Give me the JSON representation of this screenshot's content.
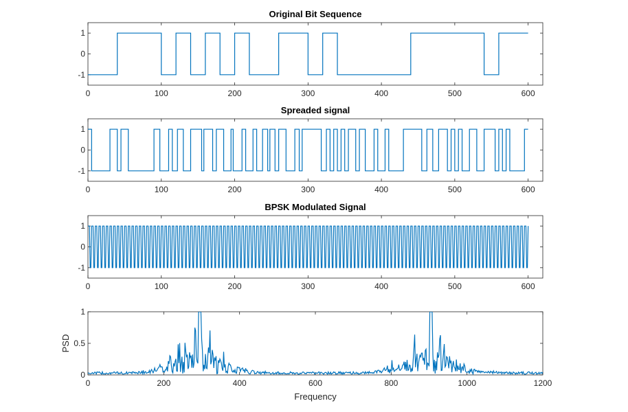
{
  "chart_data": [
    {
      "type": "line",
      "title": "Original Bit Sequence",
      "xlabel": "",
      "ylabel": "",
      "xlim": [
        0,
        620
      ],
      "ylim": [
        -1.5,
        1.5
      ],
      "xticks": [
        0,
        100,
        200,
        300,
        400,
        500,
        600
      ],
      "yticks": [
        -1,
        0,
        1
      ],
      "xtick_labels": [
        "0",
        "100",
        "200",
        "300",
        "400",
        "500",
        "600"
      ],
      "ytick_labels": [
        "-1",
        "0",
        "1"
      ],
      "step_width": 20,
      "values": [
        -1,
        -1,
        1,
        1,
        1,
        -1,
        1,
        -1,
        1,
        -1,
        1,
        -1,
        -1,
        1,
        1,
        -1,
        1,
        -1,
        -1,
        -1,
        -1,
        -1,
        1,
        1,
        1,
        1,
        1,
        -1,
        1,
        1
      ],
      "color": "#0072BD"
    },
    {
      "type": "line",
      "title": "Spreaded signal",
      "xlabel": "",
      "ylabel": "",
      "xlim": [
        0,
        620
      ],
      "ylim": [
        -1.5,
        1.5
      ],
      "xticks": [
        0,
        100,
        200,
        300,
        400,
        500,
        600
      ],
      "yticks": [
        -1,
        0,
        1
      ],
      "xtick_labels": [
        "0",
        "100",
        "200",
        "300",
        "400",
        "500",
        "600"
      ],
      "ytick_labels": [
        "-1",
        "0",
        "1"
      ],
      "breakpoints": [
        0,
        5,
        30,
        40,
        45,
        55,
        90,
        98,
        110,
        115,
        122,
        130,
        140,
        155,
        158,
        170,
        175,
        185,
        195,
        198,
        210,
        215,
        225,
        230,
        238,
        245,
        248,
        255,
        260,
        270,
        282,
        288,
        292,
        300,
        310,
        318,
        325,
        330,
        335,
        340,
        345,
        350,
        355,
        365,
        370,
        378,
        390,
        395,
        405,
        410,
        430,
        455,
        462,
        470,
        478,
        490,
        495,
        500,
        505,
        510,
        520,
        530,
        540,
        555,
        560,
        565,
        570,
        575,
        595,
        600
      ],
      "values": [
        1,
        -1,
        1,
        -1,
        1,
        -1,
        1,
        -1,
        1,
        -1,
        1,
        -1,
        1,
        -1,
        1,
        -1,
        1,
        -1,
        1,
        -1,
        1,
        -1,
        1,
        -1,
        1,
        -1,
        1,
        -1,
        1,
        -1,
        1,
        -1,
        1,
        1,
        1,
        -1,
        1,
        -1,
        1,
        -1,
        1,
        -1,
        1,
        -1,
        1,
        -1,
        1,
        -1,
        1,
        -1,
        1,
        -1,
        1,
        -1,
        1,
        -1,
        1,
        -1,
        1,
        -1,
        1,
        -1,
        1,
        -1,
        1,
        -1,
        1,
        -1,
        1
      ],
      "color": "#0072BD"
    },
    {
      "type": "line",
      "title": "BPSK Modulated Signal",
      "xlabel": "",
      "ylabel": "",
      "xlim": [
        0,
        620
      ],
      "ylim": [
        -1.5,
        1.5
      ],
      "xticks": [
        0,
        100,
        200,
        300,
        400,
        500,
        600
      ],
      "yticks": [
        -1,
        0,
        1
      ],
      "xtick_labels": [
        "0",
        "100",
        "200",
        "300",
        "400",
        "500",
        "600"
      ],
      "ytick_labels": [
        "-1",
        "0",
        "1"
      ],
      "samples": 601,
      "cycles_per_sample": 0.25,
      "color": "#0072BD"
    },
    {
      "type": "line",
      "title": "",
      "xlabel": "Frequency",
      "ylabel": "PSD",
      "xlim": [
        0,
        1200
      ],
      "ylim": [
        0,
        1
      ],
      "xticks": [
        0,
        200,
        400,
        600,
        800,
        1000,
        1200
      ],
      "yticks": [
        0,
        0.5,
        1
      ],
      "xtick_labels": [
        "0",
        "200",
        "400",
        "600",
        "800",
        "1000",
        "1200"
      ],
      "ytick_labels": [
        "0",
        "0.5",
        "1"
      ],
      "lobes": [
        {
          "center": 295,
          "peak": 1.0
        },
        {
          "center": 905,
          "peak": 1.0
        }
      ],
      "color": "#0072BD"
    }
  ]
}
